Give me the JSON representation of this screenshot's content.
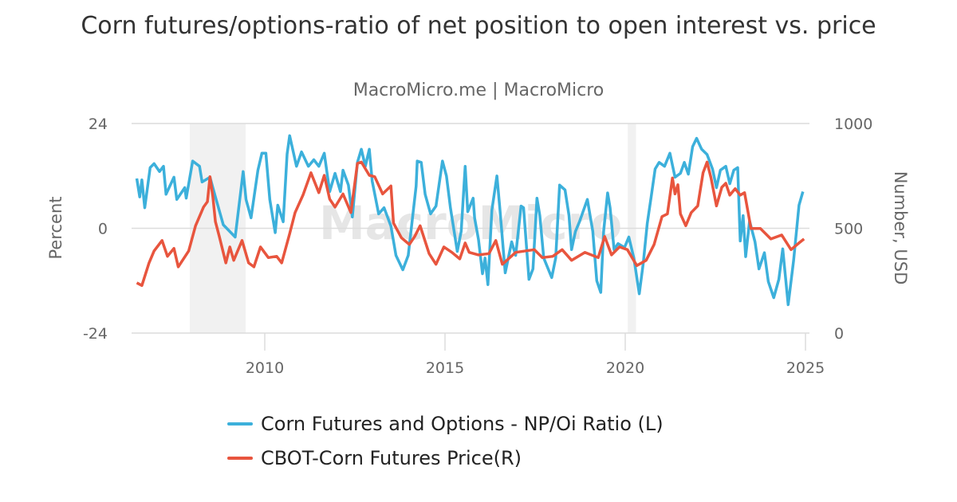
{
  "title": "Corn futures/options-ratio of net position to open interest vs. price",
  "subtitle": "MacroMicro.me | MacroMicro",
  "watermark": "MacroMicro",
  "chart_data": {
    "type": "line",
    "title": "Corn futures/options-ratio of net position to open interest vs. price",
    "x_ticks": [
      "2010",
      "2015",
      "2020",
      "2025"
    ],
    "xlim": [
      2006.2,
      2025.2
    ],
    "left_axis": {
      "label": "Percent",
      "ticks": [
        "24",
        "0",
        "-24"
      ],
      "ylim": [
        -24,
        24
      ]
    },
    "right_axis": {
      "label": "Number, USD",
      "ticks": [
        "1000",
        "500",
        "0"
      ],
      "ylim": [
        0,
        1000
      ]
    },
    "grid": true,
    "legend_position": "bottom",
    "shaded_periods": [
      [
        2007.92,
        2009.47
      ],
      [
        2020.07,
        2020.3
      ]
    ],
    "series": [
      {
        "name": "Corn Futures and Options - NP/Oi Ratio (L)",
        "axis": "left",
        "color": "#3cb0db",
        "points": [
          [
            2006.45,
            11.4
          ],
          [
            2006.53,
            7.2
          ],
          [
            2006.59,
            11.1
          ],
          [
            2006.67,
            4.7
          ],
          [
            2006.82,
            13.9
          ],
          [
            2006.93,
            14.8
          ],
          [
            2007.08,
            13
          ],
          [
            2007.19,
            14.2
          ],
          [
            2007.26,
            7.8
          ],
          [
            2007.48,
            11.7
          ],
          [
            2007.56,
            6.6
          ],
          [
            2007.78,
            9.3
          ],
          [
            2007.82,
            6.9
          ],
          [
            2008.0,
            15.4
          ],
          [
            2008.19,
            14.2
          ],
          [
            2008.26,
            10.6
          ],
          [
            2008.48,
            11.7
          ],
          [
            2008.63,
            7.2
          ],
          [
            2008.85,
            0.8
          ],
          [
            2009.18,
            -2
          ],
          [
            2009.4,
            13
          ],
          [
            2009.48,
            6.6
          ],
          [
            2009.62,
            2.4
          ],
          [
            2009.81,
            13.3
          ],
          [
            2009.92,
            17.2
          ],
          [
            2010.03,
            17.2
          ],
          [
            2010.14,
            6.6
          ],
          [
            2010.29,
            -1
          ],
          [
            2010.36,
            5.3
          ],
          [
            2010.51,
            1.5
          ],
          [
            2010.62,
            17
          ],
          [
            2010.69,
            21.2
          ],
          [
            2010.88,
            14.2
          ],
          [
            2011.02,
            17.5
          ],
          [
            2011.21,
            14.2
          ],
          [
            2011.36,
            15.7
          ],
          [
            2011.5,
            14.2
          ],
          [
            2011.65,
            17.2
          ],
          [
            2011.8,
            8.4
          ],
          [
            2011.95,
            12.6
          ],
          [
            2012.1,
            8.4
          ],
          [
            2012.17,
            13.3
          ],
          [
            2012.32,
            9.9
          ],
          [
            2012.43,
            2.6
          ],
          [
            2012.57,
            15.1
          ],
          [
            2012.68,
            18.1
          ],
          [
            2012.79,
            14.2
          ],
          [
            2012.9,
            18.1
          ],
          [
            2012.98,
            10.8
          ],
          [
            2013.16,
            3.3
          ],
          [
            2013.31,
            4.7
          ],
          [
            2013.5,
            0.5
          ],
          [
            2013.64,
            -6.2
          ],
          [
            2013.83,
            -9.5
          ],
          [
            2013.98,
            -6.2
          ],
          [
            2014.2,
            9.7
          ],
          [
            2014.23,
            15.4
          ],
          [
            2014.34,
            15.1
          ],
          [
            2014.45,
            7.8
          ],
          [
            2014.6,
            3.3
          ],
          [
            2014.75,
            5.1
          ],
          [
            2014.93,
            15.4
          ],
          [
            2015.04,
            12
          ],
          [
            2015.15,
            4.7
          ],
          [
            2015.34,
            -5.3
          ],
          [
            2015.45,
            -0.7
          ],
          [
            2015.56,
            14.2
          ],
          [
            2015.63,
            3.8
          ],
          [
            2015.78,
            6.9
          ],
          [
            2015.82,
            2.4
          ],
          [
            2015.93,
            -2.6
          ],
          [
            2016.04,
            -10.4
          ],
          [
            2016.11,
            -6.8
          ],
          [
            2016.19,
            -12.9
          ],
          [
            2016.3,
            4.2
          ],
          [
            2016.44,
            12
          ],
          [
            2016.52,
            4.7
          ],
          [
            2016.67,
            -10.2
          ],
          [
            2016.85,
            -3.1
          ],
          [
            2016.96,
            -6.2
          ],
          [
            2017.11,
            5.1
          ],
          [
            2017.18,
            4.7
          ],
          [
            2017.33,
            -11.7
          ],
          [
            2017.44,
            -9.3
          ],
          [
            2017.55,
            6.9
          ],
          [
            2017.63,
            2.9
          ],
          [
            2017.74,
            -6.8
          ],
          [
            2017.96,
            -11.3
          ],
          [
            2018.07,
            -6.8
          ],
          [
            2018.18,
            9.9
          ],
          [
            2018.33,
            8.8
          ],
          [
            2018.44,
            2.9
          ],
          [
            2018.51,
            -4.9
          ],
          [
            2018.62,
            -0.7
          ],
          [
            2018.73,
            1.5
          ],
          [
            2018.95,
            6.6
          ],
          [
            2019.1,
            -0.7
          ],
          [
            2019.21,
            -12
          ],
          [
            2019.32,
            -14.7
          ],
          [
            2019.4,
            -0.7
          ],
          [
            2019.51,
            8.1
          ],
          [
            2019.58,
            4.7
          ],
          [
            2019.69,
            -4.9
          ],
          [
            2019.8,
            -3.5
          ],
          [
            2019.98,
            -4.4
          ],
          [
            2020.1,
            -2
          ],
          [
            2020.24,
            -6.8
          ],
          [
            2020.39,
            -15
          ],
          [
            2020.5,
            -8
          ],
          [
            2020.61,
            1.1
          ],
          [
            2020.72,
            7.2
          ],
          [
            2020.83,
            13.6
          ],
          [
            2020.94,
            15.1
          ],
          [
            2021.09,
            14.2
          ],
          [
            2021.24,
            17.2
          ],
          [
            2021.38,
            11.7
          ],
          [
            2021.53,
            12.6
          ],
          [
            2021.64,
            15.1
          ],
          [
            2021.75,
            12.4
          ],
          [
            2021.87,
            18.7
          ],
          [
            2021.98,
            20.6
          ],
          [
            2022.12,
            18.1
          ],
          [
            2022.27,
            16.9
          ],
          [
            2022.42,
            13.6
          ],
          [
            2022.53,
            9.3
          ],
          [
            2022.64,
            13.3
          ],
          [
            2022.79,
            14.2
          ],
          [
            2022.9,
            10.2
          ],
          [
            2023.01,
            13.3
          ],
          [
            2023.12,
            13.9
          ],
          [
            2023.19,
            -2.9
          ],
          [
            2023.27,
            2.9
          ],
          [
            2023.34,
            -6.5
          ],
          [
            2023.45,
            1.7
          ],
          [
            2023.6,
            -3.1
          ],
          [
            2023.71,
            -9.3
          ],
          [
            2023.86,
            -5.6
          ],
          [
            2023.97,
            -12.2
          ],
          [
            2024.12,
            -15.9
          ],
          [
            2024.26,
            -11.7
          ],
          [
            2024.37,
            -4.7
          ],
          [
            2024.52,
            -17.5
          ],
          [
            2024.67,
            -7.4
          ],
          [
            2024.82,
            5.3
          ],
          [
            2024.93,
            8.4
          ]
        ]
      },
      {
        "name": "CBOT-Corn Futures Price(R)",
        "axis": "right",
        "color": "#e8553e",
        "points": [
          [
            2006.45,
            240
          ],
          [
            2006.59,
            227
          ],
          [
            2006.79,
            335
          ],
          [
            2006.93,
            392
          ],
          [
            2007.15,
            442
          ],
          [
            2007.3,
            366
          ],
          [
            2007.48,
            404
          ],
          [
            2007.6,
            316
          ],
          [
            2007.89,
            392
          ],
          [
            2008.08,
            512
          ],
          [
            2008.3,
            601
          ],
          [
            2008.41,
            627
          ],
          [
            2008.48,
            746
          ],
          [
            2008.56,
            651
          ],
          [
            2008.63,
            532
          ],
          [
            2008.74,
            461
          ],
          [
            2008.92,
            335
          ],
          [
            2009.03,
            411
          ],
          [
            2009.14,
            347
          ],
          [
            2009.37,
            442
          ],
          [
            2009.55,
            335
          ],
          [
            2009.7,
            316
          ],
          [
            2009.88,
            411
          ],
          [
            2010.1,
            360
          ],
          [
            2010.33,
            366
          ],
          [
            2010.47,
            335
          ],
          [
            2010.69,
            474
          ],
          [
            2010.84,
            575
          ],
          [
            2011.06,
            658
          ],
          [
            2011.28,
            765
          ],
          [
            2011.5,
            670
          ],
          [
            2011.65,
            753
          ],
          [
            2011.8,
            639
          ],
          [
            2011.95,
            601
          ],
          [
            2012.17,
            664
          ],
          [
            2012.39,
            575
          ],
          [
            2012.57,
            810
          ],
          [
            2012.68,
            816
          ],
          [
            2012.9,
            753
          ],
          [
            2013.05,
            746
          ],
          [
            2013.27,
            664
          ],
          [
            2013.5,
            702
          ],
          [
            2013.57,
            525
          ],
          [
            2013.79,
            455
          ],
          [
            2014.01,
            423
          ],
          [
            2014.16,
            461
          ],
          [
            2014.31,
            512
          ],
          [
            2014.56,
            379
          ],
          [
            2014.75,
            328
          ],
          [
            2014.97,
            411
          ],
          [
            2015.19,
            385
          ],
          [
            2015.41,
            354
          ],
          [
            2015.56,
            430
          ],
          [
            2015.67,
            385
          ],
          [
            2015.93,
            373
          ],
          [
            2016.22,
            379
          ],
          [
            2016.41,
            442
          ],
          [
            2016.59,
            328
          ],
          [
            2016.96,
            385
          ],
          [
            2017.48,
            398
          ],
          [
            2017.7,
            360
          ],
          [
            2017.99,
            366
          ],
          [
            2018.25,
            398
          ],
          [
            2018.51,
            347
          ],
          [
            2018.88,
            385
          ],
          [
            2019.25,
            360
          ],
          [
            2019.43,
            461
          ],
          [
            2019.62,
            373
          ],
          [
            2019.84,
            411
          ],
          [
            2020.06,
            398
          ],
          [
            2020.32,
            322
          ],
          [
            2020.58,
            347
          ],
          [
            2020.8,
            423
          ],
          [
            2021.02,
            556
          ],
          [
            2021.17,
            569
          ],
          [
            2021.31,
            740
          ],
          [
            2021.38,
            664
          ],
          [
            2021.46,
            708
          ],
          [
            2021.53,
            569
          ],
          [
            2021.68,
            512
          ],
          [
            2021.83,
            575
          ],
          [
            2022.01,
            607
          ],
          [
            2022.16,
            765
          ],
          [
            2022.27,
            816
          ],
          [
            2022.38,
            740
          ],
          [
            2022.53,
            607
          ],
          [
            2022.68,
            696
          ],
          [
            2022.79,
            715
          ],
          [
            2022.9,
            658
          ],
          [
            2023.05,
            689
          ],
          [
            2023.19,
            658
          ],
          [
            2023.31,
            670
          ],
          [
            2023.49,
            499
          ],
          [
            2023.75,
            499
          ],
          [
            2024.04,
            449
          ],
          [
            2024.34,
            468
          ],
          [
            2024.6,
            398
          ],
          [
            2024.82,
            430
          ],
          [
            2024.96,
            449
          ]
        ]
      }
    ]
  }
}
